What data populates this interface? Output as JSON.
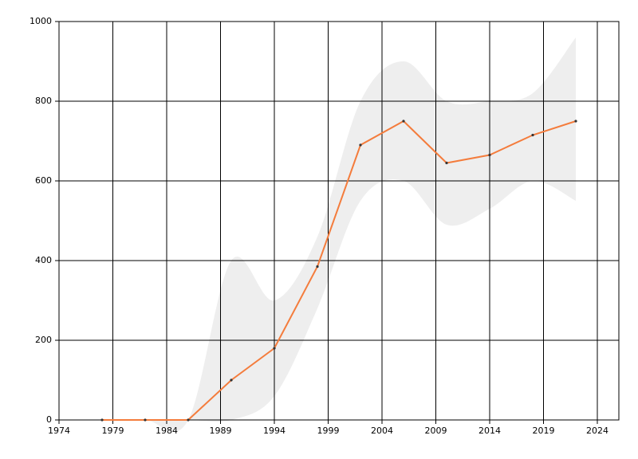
{
  "chart_data": {
    "type": "line",
    "x": [
      1978,
      1982,
      1986,
      1990,
      1994,
      1998,
      2002,
      2006,
      2010,
      2014,
      2018,
      2022
    ],
    "values": [
      0,
      0,
      0,
      100,
      180,
      385,
      690,
      750,
      645,
      665,
      715,
      750
    ],
    "color": "#f47c3c",
    "band": {
      "color": "#eeeeee",
      "upper": [
        0,
        0,
        0,
        400,
        300,
        460,
        800,
        900,
        800,
        800,
        820,
        960
      ],
      "lower": [
        0,
        0,
        0,
        0,
        60,
        280,
        550,
        600,
        490,
        530,
        600,
        550
      ]
    },
    "xlim": [
      1974,
      2026
    ],
    "xticks": [
      1974,
      1979,
      1984,
      1989,
      1994,
      1999,
      2004,
      2009,
      2014,
      2019,
      2024
    ],
    "ylim": [
      0,
      1000
    ],
    "yticks": [
      0,
      200,
      400,
      600,
      800,
      1000
    ],
    "grid": true
  }
}
